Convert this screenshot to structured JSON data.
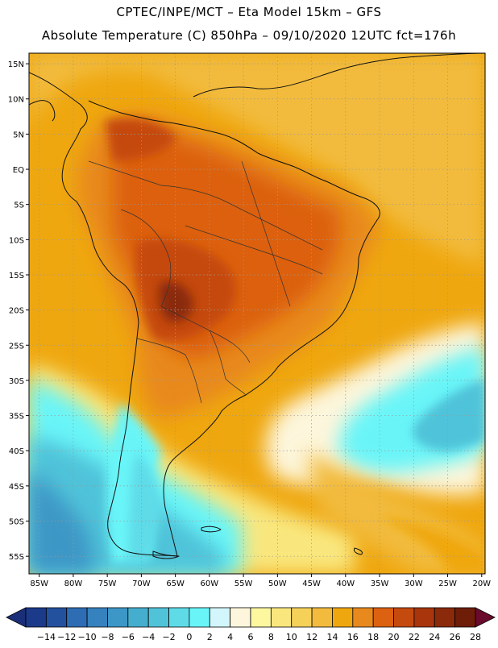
{
  "header": {
    "line1": "CPTEC/INPE/MCT –  Eta Model 15km – GFS",
    "line2": "Absolute Temperature (C) 850hPa – 09/10/2020 12UTC fct=176h"
  },
  "map": {
    "lat_labels": [
      "15N",
      "10N",
      "5N",
      "EQ",
      "5S",
      "10S",
      "15S",
      "20S",
      "25S",
      "30S",
      "35S",
      "40S",
      "45S",
      "50S",
      "55S"
    ],
    "lon_labels": [
      "85W",
      "80W",
      "75W",
      "70W",
      "65W",
      "60W",
      "55W",
      "50W",
      "45W",
      "40W",
      "35W",
      "30W",
      "25W",
      "20W"
    ],
    "lat_range": [
      -57.5,
      16.5
    ],
    "lon_range": [
      -86.5,
      -19.5
    ]
  },
  "colorbar": {
    "labels": [
      "-14",
      "-12",
      "-10",
      "-8",
      "-6",
      "-4",
      "-2",
      "0",
      "2",
      "4",
      "6",
      "8",
      "10",
      "12",
      "14",
      "16",
      "18",
      "20",
      "22",
      "24",
      "26",
      "28"
    ],
    "colors": [
      "#1c3a8a",
      "#24519e",
      "#2e6db4",
      "#3682be",
      "#3d97c6",
      "#45aecf",
      "#50c3d9",
      "#5fdbe8",
      "#69f5f8",
      "#d2f6fb",
      "#fdf6dc",
      "#fdf7a0",
      "#f9e77e",
      "#f6d15a",
      "#f2bb3e",
      "#efa70f",
      "#e8891d",
      "#dc6111",
      "#c54a0e",
      "#a8350c",
      "#8a2a0a",
      "#6d1d08"
    ],
    "under_color": "#1a2f78",
    "over_color": "#6a0a2c"
  }
}
